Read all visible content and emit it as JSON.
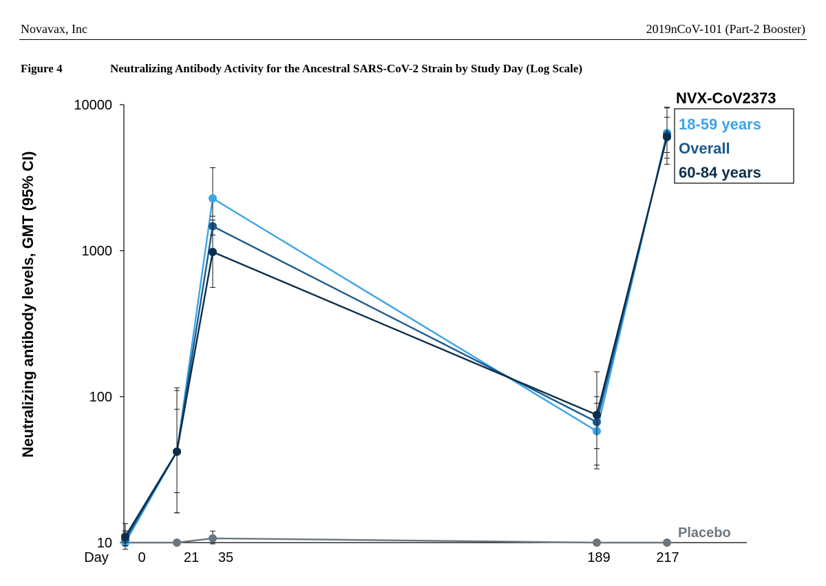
{
  "header": {
    "company": "Novavax, Inc",
    "study": "2019nCoV-101 (Part-2 Booster)"
  },
  "figure": {
    "label": "Figure 4",
    "title": "Neutralizing Antibody Activity for the Ancestral SARS-CoV-2 Strain by Study Day (Log Scale)"
  },
  "chart_data": {
    "type": "line",
    "title": "Neutralizing Antibody Activity for the Ancestral SARS-CoV-2 Strain by Study Day (Log Scale)",
    "ylabel": "Neutralizing antibody levels, GMT (95% CI)",
    "xlabel": "Day",
    "x_axis_prefix": "Day",
    "x_ticks": [
      "0",
      "21",
      "35",
      "189",
      "217"
    ],
    "y_scale": "log",
    "ylim": [
      10,
      10000
    ],
    "y_ticks": [
      "10",
      "100",
      "1000",
      "10000"
    ],
    "grid": false,
    "legend_title": "NVX-CoV2373",
    "legend_position": "top-right",
    "series": [
      {
        "name": "18-59 years",
        "color": "#3ba3e8",
        "x": [
          0,
          21,
          35,
          189,
          217
        ],
        "values": [
          10,
          42,
          2280,
          58,
          6400
        ],
        "ci_low": [
          9,
          16,
          1400,
          34,
          4300
        ],
        "ci_high": [
          12,
          110,
          3700,
          100,
          9600
        ]
      },
      {
        "name": "Overall",
        "color": "#1b5a8d",
        "x": [
          0,
          21,
          35,
          189,
          217
        ],
        "values": [
          10.5,
          42,
          1470,
          67,
          6200
        ],
        "ci_low": [
          9.5,
          22,
          1280,
          44,
          4700
        ],
        "ci_high": [
          12,
          82,
          1720,
          90,
          8200
        ]
      },
      {
        "name": "60-84 years",
        "color": "#0b2e4a",
        "x": [
          0,
          21,
          35,
          189,
          217
        ],
        "values": [
          11,
          42,
          980,
          75,
          6000
        ],
        "ci_low": [
          9.5,
          16,
          560,
          32,
          3900
        ],
        "ci_high": [
          13.5,
          115,
          1620,
          148,
          9500
        ]
      },
      {
        "name": "Placebo",
        "color": "#6b7780",
        "x": [
          0,
          21,
          35,
          189,
          217
        ],
        "values": [
          10,
          10,
          10.7,
          10,
          10
        ],
        "ci_low": [
          9.7,
          9.8,
          9.8,
          9.8,
          9.8
        ],
        "ci_high": [
          10.3,
          10.3,
          12,
          10.2,
          10.2
        ]
      }
    ]
  }
}
